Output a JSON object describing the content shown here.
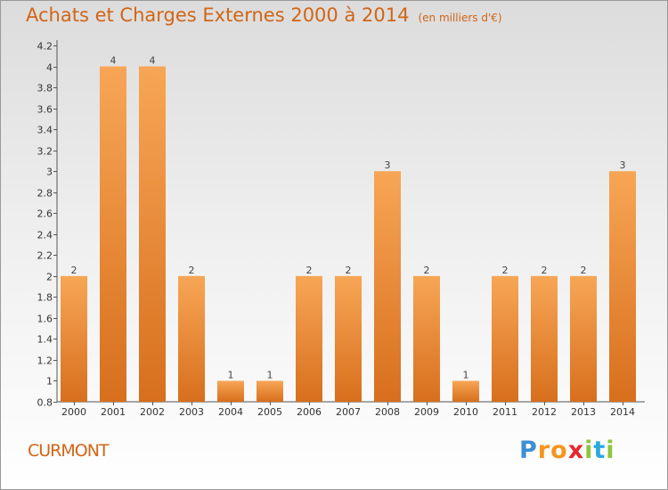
{
  "chart_data": {
    "type": "bar",
    "title": "Achats et Charges Externes 2000 à 2014",
    "subtitle": "(en milliers d'€)",
    "categories": [
      "2000",
      "2001",
      "2002",
      "2003",
      "2004",
      "2005",
      "2006",
      "2007",
      "2008",
      "2009",
      "2010",
      "2011",
      "2012",
      "2013",
      "2014"
    ],
    "values": [
      2,
      4,
      4,
      2,
      1,
      1,
      2,
      2,
      3,
      2,
      1,
      2,
      2,
      2,
      3
    ],
    "ylim": [
      0.8,
      4.2
    ],
    "yticks": [
      0.8,
      1,
      1.2,
      1.4,
      1.6,
      1.8,
      2,
      2.2,
      2.4,
      2.6,
      2.8,
      3,
      3.2,
      3.4,
      3.6,
      3.8,
      4,
      4.2
    ],
    "xlabel": "",
    "ylabel": "",
    "grid": false,
    "bar_color": "#f0a24f"
  },
  "footer": {
    "place_name": "CURMONT",
    "logo_letters": [
      "P",
      "r",
      "o",
      "x",
      "i",
      "t",
      "i"
    ],
    "logo_colors": [
      "#3b8fd4",
      "#f7941d",
      "#f7941d",
      "#e8262a",
      "#8cc63f",
      "#2aa9e0",
      "#8cc63f"
    ]
  },
  "colors": {
    "title": "#d16516",
    "axis": "#555555"
  }
}
